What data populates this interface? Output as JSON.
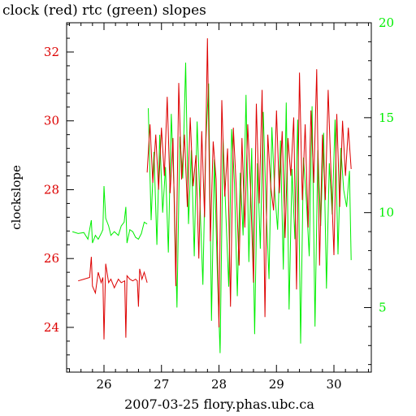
{
  "chart_data": {
    "type": "line",
    "title": "clock (red) rtc (green) slopes",
    "xlabel": "2007-03-25 flory.phas.ubc.ca",
    "ylabel": "clockslope",
    "xlim": [
      25.35,
      30.65
    ],
    "ylim_left": [
      22.7,
      32.85
    ],
    "ylim_right": [
      1.6,
      20.0
    ],
    "x_ticks": [
      26,
      27,
      28,
      29,
      30
    ],
    "x_tick_labels": [
      "26",
      "27",
      "28",
      "29",
      "30"
    ],
    "y_left_ticks": [
      24,
      26,
      28,
      30,
      32
    ],
    "y_left_tick_labels": [
      "24",
      "26",
      "28",
      "30",
      "32"
    ],
    "y_right_ticks": [
      5,
      10,
      15,
      20
    ],
    "y_right_tick_labels": [
      "5",
      "10",
      "15",
      "20"
    ],
    "colors": {
      "clock": "#dd0000",
      "rtc": "#00ee00",
      "left_axis_text": "#dd0000",
      "right_axis_text": "#00ee00",
      "frame": "#000000"
    },
    "series": [
      {
        "name": "clock",
        "axis": "left",
        "segments": [
          {
            "x": [
              25.55,
              25.65,
              25.75,
              25.78,
              25.8,
              25.85,
              25.9,
              25.95,
              25.98,
              26.0,
              26.03,
              26.08,
              26.12,
              26.18,
              26.25,
              26.3,
              26.36,
              26.38,
              26.4,
              26.45,
              26.5,
              26.55,
              26.58,
              26.6,
              26.62,
              26.66,
              26.7,
              26.75
            ],
            "y": [
              25.35,
              25.4,
              25.45,
              26.05,
              25.2,
              25.0,
              25.6,
              25.3,
              25.45,
              23.65,
              25.85,
              25.3,
              25.4,
              25.15,
              25.4,
              25.3,
              25.35,
              23.7,
              25.5,
              25.4,
              25.35,
              25.4,
              25.35,
              24.6,
              25.7,
              25.4,
              25.6,
              25.3
            ]
          },
          {
            "x": [
              26.75,
              26.8,
              26.85,
              26.9,
              26.95,
              27.0,
              27.05,
              27.1,
              27.15,
              27.2,
              27.25,
              27.3,
              27.35,
              27.4,
              27.45,
              27.5,
              27.55,
              27.6,
              27.65,
              27.7,
              27.75,
              27.8,
              27.85,
              27.9,
              27.95,
              28.0,
              28.05,
              28.1,
              28.15,
              28.2,
              28.25,
              28.3,
              28.35,
              28.4,
              28.45,
              28.5,
              28.55,
              28.6,
              28.65,
              28.7,
              28.75,
              28.8,
              28.85,
              28.9,
              28.95,
              29.0,
              29.05,
              29.1,
              29.15,
              29.2,
              29.25,
              29.3,
              29.35,
              29.4,
              29.45,
              29.5,
              29.55,
              29.6,
              29.65,
              29.7,
              29.75,
              29.8,
              29.85,
              29.9,
              29.95,
              30.0,
              30.05,
              30.1,
              30.15,
              30.2,
              30.25,
              30.3
            ],
            "y": [
              28.5,
              29.9,
              28.2,
              29.6,
              28.0,
              29.8,
              28.4,
              30.7,
              27.9,
              29.5,
              25.2,
              31.1,
              28.3,
              29.6,
              27.5,
              30.1,
              28.1,
              29.0,
              26.0,
              29.7,
              27.2,
              32.4,
              26.5,
              29.4,
              28.3,
              24.0,
              30.6,
              27.8,
              29.2,
              24.6,
              29.8,
              28.1,
              25.8,
              29.5,
              26.9,
              29.9,
              28.0,
              25.3,
              30.5,
              27.6,
              30.9,
              24.3,
              29.6,
              28.1,
              27.4,
              30.3,
              27.9,
              29.7,
              26.6,
              29.5,
              28.4,
              30.1,
              25.1,
              31.4,
              27.7,
              29.9,
              26.9,
              30.3,
              28.2,
              31.5,
              25.8,
              29.6,
              27.7,
              30.9,
              28.4,
              26.1,
              30.2,
              27.5,
              30.0,
              28.4,
              29.8,
              28.6
            ]
          }
        ]
      },
      {
        "name": "rtc",
        "axis": "right",
        "segments": [
          {
            "x": [
              25.45,
              25.55,
              25.65,
              25.72,
              25.78,
              25.8,
              25.85,
              25.9,
              25.95,
              25.98,
              26.0,
              26.03,
              26.08,
              26.12,
              26.18,
              26.25,
              26.3,
              26.35,
              26.38,
              26.4,
              26.45,
              26.5,
              26.55,
              26.6,
              26.65,
              26.7,
              26.75
            ],
            "y": [
              9.0,
              8.9,
              8.95,
              8.6,
              9.6,
              8.4,
              8.8,
              8.6,
              8.9,
              9.1,
              11.4,
              9.7,
              9.3,
              8.8,
              9.0,
              8.8,
              9.3,
              9.5,
              10.3,
              8.4,
              9.1,
              9.0,
              8.7,
              8.6,
              8.9,
              9.5,
              9.4
            ]
          },
          {
            "x": [
              26.77,
              26.82,
              26.87,
              26.92,
              26.97,
              27.02,
              27.07,
              27.12,
              27.17,
              27.22,
              27.27,
              27.32,
              27.37,
              27.42,
              27.47,
              27.52,
              27.57,
              27.62,
              27.67,
              27.72,
              27.77,
              27.82,
              27.87,
              27.92,
              27.97,
              28.02,
              28.07,
              28.12,
              28.17,
              28.22,
              28.27,
              28.32,
              28.37,
              28.42,
              28.47,
              28.52,
              28.57,
              28.62,
              28.67,
              28.72,
              28.77,
              28.82,
              28.87,
              28.92,
              28.97,
              29.02,
              29.07,
              29.12,
              29.17,
              29.22,
              29.27,
              29.32,
              29.37,
              29.42,
              29.47,
              29.52,
              29.57,
              29.62,
              29.67,
              29.72,
              29.77,
              29.82,
              29.87,
              29.92,
              29.97,
              30.02,
              30.07,
              30.12,
              30.17,
              30.22,
              30.27,
              30.3
            ],
            "y": [
              15.5,
              9.6,
              13.2,
              8.3,
              14.1,
              10.0,
              12.4,
              7.9,
              15.2,
              11.1,
              5.0,
              14.0,
              11.8,
              17.9,
              9.4,
              13.3,
              7.7,
              14.8,
              10.4,
              6.2,
              13.6,
              16.8,
              4.3,
              12.8,
              7.0,
              2.6,
              13.9,
              9.9,
              6.1,
              14.4,
              11.5,
              5.6,
              12.1,
              8.8,
              16.2,
              7.4,
              13.4,
              3.6,
              12.6,
              8.1,
              15.3,
              10.3,
              6.5,
              14.5,
              11.1,
              9.1,
              13.8,
              7.0,
              15.8,
              4.9,
              12.3,
              8.6,
              14.9,
              3.1,
              12.9,
              10.7,
              7.7,
              15.6,
              4.0,
              13.3,
              9.3,
              14.2,
              6.0,
              12.6,
              9.9,
              14.9,
              7.8,
              13.4,
              11.2,
              10.3,
              12.2,
              7.5
            ]
          }
        ]
      }
    ]
  }
}
